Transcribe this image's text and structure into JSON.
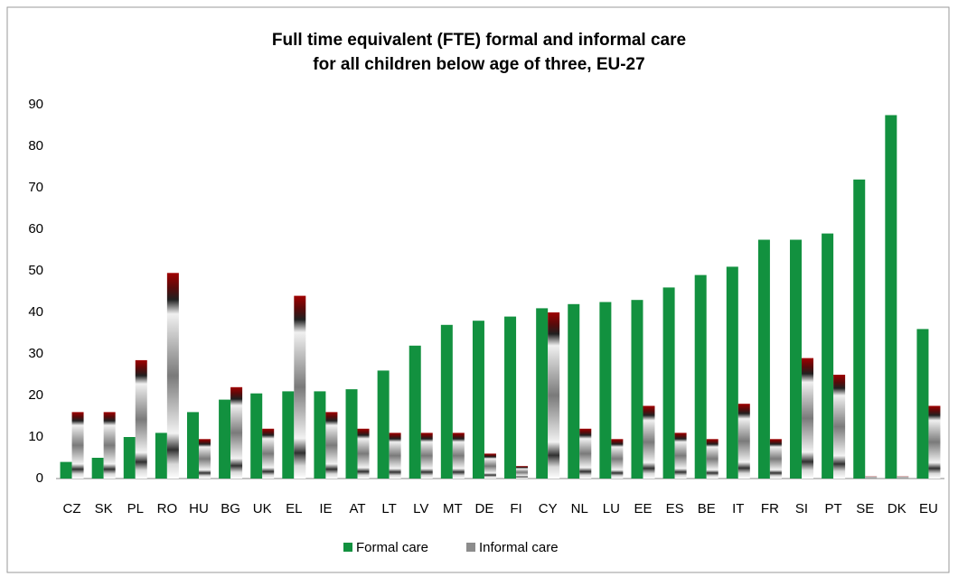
{
  "chart_data": {
    "type": "bar",
    "title": [
      "Full time equivalent  (FTE) formal and informal care",
      "for all children below age of three, EU-27"
    ],
    "categories": [
      "CZ",
      "SK",
      "PL",
      "RO",
      "HU",
      "BG",
      "UK",
      "EL",
      "IE",
      "AT",
      "LT",
      "LV",
      "MT",
      "DE",
      "FI",
      "CY",
      "NL",
      "LU",
      "EE",
      "ES",
      "BE",
      "IT",
      "FR",
      "SI",
      "PT",
      "SE",
      "DK",
      "EU"
    ],
    "series": [
      {
        "name": "Formal care",
        "color": "#12913f",
        "values": [
          4,
          5,
          10,
          11,
          16,
          19,
          20.5,
          21,
          21,
          21.5,
          26,
          32,
          37,
          38,
          39,
          41,
          42,
          42.5,
          43,
          46,
          49,
          51,
          57.5,
          57.5,
          59,
          72,
          87.5,
          36
        ]
      },
      {
        "name": "Informal care",
        "color": "#8c8c8c",
        "values": [
          16,
          16,
          28.5,
          49.5,
          9.5,
          22,
          12,
          44,
          16,
          12,
          11,
          11,
          11,
          6,
          3,
          40,
          12,
          9.5,
          17.5,
          11,
          9.5,
          18,
          9.5,
          29,
          25,
          0.5,
          0.5,
          17.5
        ]
      }
    ],
    "ylim": [
      0,
      90
    ],
    "yticks": [
      0,
      10,
      20,
      30,
      40,
      50,
      60,
      70,
      80,
      90
    ],
    "grid": false,
    "legend": "bottom"
  }
}
